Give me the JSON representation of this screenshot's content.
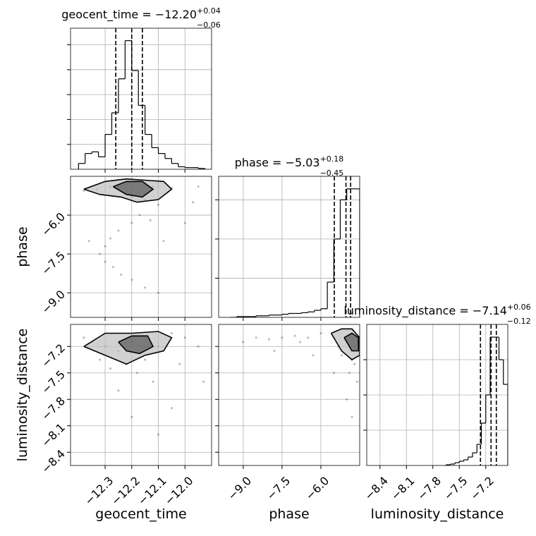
{
  "chart_data": {
    "type": "corner",
    "parameters": [
      {
        "name": "geocent_time",
        "lim": [
          -12.43,
          -11.9
        ],
        "ticks": [
          {
            "value": -12.3,
            "label": "−12.3"
          },
          {
            "value": -12.2,
            "label": "−12.2"
          },
          {
            "value": -12.1,
            "label": "−12.1"
          },
          {
            "value": -12.0,
            "label": "−12.0"
          }
        ],
        "title": {
          "text": "geocent_time = −12.20",
          "plus": "+0.04",
          "minus": "−0.06"
        },
        "quantiles": [
          -12.26,
          -12.2,
          -12.16
        ],
        "hist": {
          "bins": [
            -12.4,
            -12.375,
            -12.35,
            -12.325,
            -12.3,
            -12.275,
            -12.25,
            -12.225,
            -12.2,
            -12.175,
            -12.15,
            -12.125,
            -12.1,
            -12.075,
            -12.05,
            -12.025,
            -12.0,
            -11.975,
            -11.95,
            -11.925
          ],
          "counts": [
            7,
            19,
            21,
            15,
            42,
            68,
            109,
            155,
            119,
            77,
            42,
            26,
            19,
            13,
            7,
            3,
            2,
            2,
            1
          ],
          "ylim": [
            0,
            170
          ],
          "yticks": [
            30,
            60,
            90,
            120,
            150
          ]
        }
      },
      {
        "name": "phase",
        "lim": [
          -9.95,
          -4.5
        ],
        "ticks": [
          {
            "value": -9.0,
            "label": "−9.0"
          },
          {
            "value": -7.5,
            "label": "−7.5"
          },
          {
            "value": -6.0,
            "label": "−6.0"
          }
        ],
        "title": {
          "text": "phase = −5.03",
          "plus": "+0.18",
          "minus": "−0.45"
        },
        "quantiles": [
          -5.48,
          -5.03,
          -4.85
        ],
        "hist": {
          "bins": [
            -9.5,
            -9.25,
            -9.0,
            -8.75,
            -8.5,
            -8.25,
            -8.0,
            -7.75,
            -7.5,
            -7.25,
            -7.0,
            -6.75,
            -6.5,
            -6.25,
            -6.0,
            -5.75,
            -5.5,
            -5.25,
            -5.0,
            -4.75,
            -4.5
          ],
          "counts": [
            0,
            1,
            1,
            1,
            2,
            2,
            3,
            3,
            4,
            5,
            5,
            6,
            7,
            9,
            11,
            45,
            100,
            150,
            164,
            164
          ],
          "ylim": [
            0,
            180
          ],
          "yticks": [
            50,
            100,
            150
          ]
        }
      },
      {
        "name": "luminosity_distance",
        "lim": [
          -8.55,
          -6.95
        ],
        "ticks": [
          {
            "value": -8.4,
            "label": "−8.4"
          },
          {
            "value": -8.1,
            "label": "−8.1"
          },
          {
            "value": -7.8,
            "label": "−7.8"
          },
          {
            "value": -7.5,
            "label": "−7.5"
          },
          {
            "value": -7.2,
            "label": "−7.2"
          }
        ],
        "title": {
          "text": "luminosity_distance = −7.14",
          "plus": "+0.06",
          "minus": "−0.12"
        },
        "quantiles": [
          -7.26,
          -7.14,
          -7.08
        ],
        "hist": {
          "bins": [
            -7.65,
            -7.6,
            -7.55,
            -7.5,
            -7.45,
            -7.4,
            -7.35,
            -7.3,
            -7.25,
            -7.2,
            -7.15,
            -7.1,
            -7.05,
            -7.0,
            -6.95
          ],
          "counts": [
            1,
            2,
            4,
            6,
            8,
            12,
            18,
            30,
            60,
            100,
            182,
            182,
            150,
            115
          ],
          "ylim": [
            0,
            200
          ],
          "yticks": [
            50,
            100,
            150
          ]
        }
      }
    ],
    "pairs": [
      {
        "x_param": 0,
        "y_param": 1,
        "points": {
          "x": [
            -12.33,
            -12.28,
            -12.22,
            -12.18,
            -12.12,
            -12.05,
            -11.95,
            -12.38,
            -12.2,
            -12.15,
            -12.1,
            -12.17,
            -12.2,
            -12.25,
            -12.28,
            -12.3,
            -12.32,
            -12.3,
            -12.27,
            -12.24,
            -12.2,
            -12.15,
            -12.1,
            -12.08,
            -12.0,
            -11.97,
            -12.36,
            -12.13
          ],
          "y": [
            -5.0,
            -4.9,
            -4.8,
            -5.1,
            -4.9,
            -4.95,
            -4.9,
            -5.05,
            -5.3,
            -5.4,
            -5.6,
            -6.0,
            -6.3,
            -6.6,
            -6.9,
            -7.2,
            -7.5,
            -7.8,
            -8.0,
            -8.3,
            -8.5,
            -8.8,
            -9.0,
            -7.0,
            -6.3,
            -5.5,
            -7.0,
            -6.2
          ]
        },
        "contours": [
          {
            "x": [
              -12.38,
              -12.3,
              -12.22,
              -12.15,
              -12.08,
              -12.05,
              -12.1,
              -12.18,
              -12.24,
              -12.32,
              -12.38
            ],
            "y": [
              -5.0,
              -4.7,
              -4.6,
              -4.65,
              -4.7,
              -5.0,
              -5.4,
              -5.5,
              -5.3,
              -5.2,
              -5.0
            ]
          },
          {
            "x": [
              -12.27,
              -12.22,
              -12.16,
              -12.12,
              -12.16,
              -12.22,
              -12.27
            ],
            "y": [
              -4.9,
              -4.7,
              -4.7,
              -5.0,
              -5.3,
              -5.2,
              -4.9
            ]
          }
        ]
      },
      {
        "x_param": 0,
        "y_param": 2,
        "points": {
          "x": [
            -12.35,
            -12.3,
            -12.25,
            -12.2,
            -12.15,
            -12.1,
            -12.05,
            -12.0,
            -11.95,
            -12.38,
            -12.22,
            -12.18,
            -12.28,
            -12.12,
            -12.25,
            -12.05,
            -12.2,
            -12.1,
            -11.93,
            -12.32,
            -12.15,
            -12.02
          ],
          "y": [
            -7.15,
            -7.2,
            -7.25,
            -7.15,
            -7.1,
            -7.2,
            -7.05,
            -7.1,
            -7.2,
            -7.1,
            -7.4,
            -7.5,
            -7.45,
            -7.6,
            -7.7,
            -7.9,
            -8.0,
            -8.2,
            -7.6,
            -7.35,
            -7.35,
            -7.4
          ]
        },
        "contours": [
          {
            "x": [
              -12.38,
              -12.3,
              -12.2,
              -12.1,
              -12.05,
              -12.08,
              -12.15,
              -12.22,
              -12.3,
              -12.38
            ],
            "y": [
              -7.2,
              -7.05,
              -7.05,
              -7.03,
              -7.1,
              -7.25,
              -7.3,
              -7.4,
              -7.3,
              -7.2
            ]
          },
          {
            "x": [
              -12.25,
              -12.2,
              -12.14,
              -12.12,
              -12.17,
              -12.22,
              -12.25
            ],
            "y": [
              -7.15,
              -7.08,
              -7.08,
              -7.2,
              -7.28,
              -7.25,
              -7.15
            ]
          }
        ]
      },
      {
        "x_param": 1,
        "y_param": 2,
        "points": {
          "x": [
            -9.0,
            -8.5,
            -8.0,
            -7.5,
            -7.0,
            -6.5,
            -6.0,
            -5.5,
            -5.0,
            -4.7,
            -4.8,
            -4.9,
            -5.2,
            -4.6,
            -5.0,
            -4.8,
            -5.5,
            -6.3,
            -7.8,
            -4.7,
            -5.3,
            -6.8
          ],
          "y": [
            -7.15,
            -7.1,
            -7.12,
            -7.1,
            -7.08,
            -7.1,
            -7.05,
            -7.1,
            -7.15,
            -7.2,
            -7.35,
            -7.5,
            -7.3,
            -7.6,
            -7.8,
            -8.0,
            -7.5,
            -7.3,
            -7.25,
            -7.4,
            -7.2,
            -7.15
          ]
        },
        "contours": [
          {
            "x": [
              -5.6,
              -5.2,
              -4.8,
              -4.5,
              -4.5,
              -4.8,
              -5.2,
              -5.6
            ],
            "y": [
              -7.05,
              -7.0,
              -7.0,
              -7.1,
              -7.3,
              -7.35,
              -7.25,
              -7.05
            ]
          },
          {
            "x": [
              -5.1,
              -4.8,
              -4.55,
              -4.55,
              -4.8,
              -5.1
            ],
            "y": [
              -7.1,
              -7.05,
              -7.1,
              -7.25,
              -7.25,
              -7.1
            ]
          }
        ]
      }
    ]
  }
}
